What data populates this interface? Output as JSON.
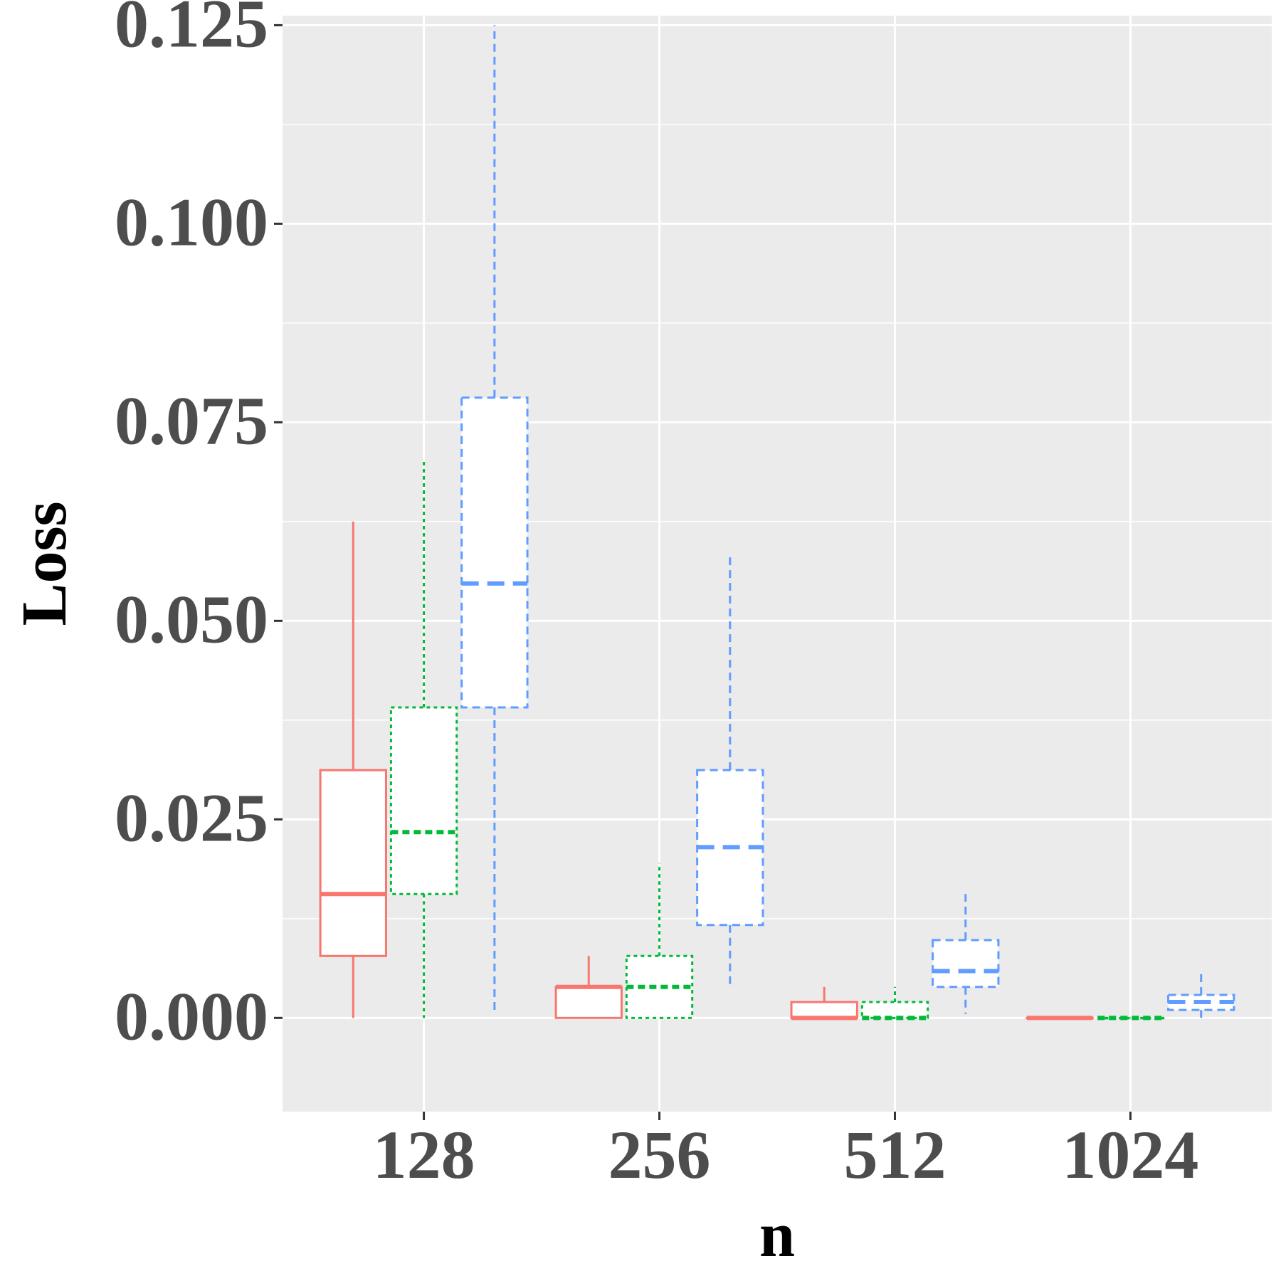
{
  "chart_data": {
    "type": "boxplot",
    "xlabel": "n",
    "ylabel": "Loss",
    "categories": [
      "128",
      "256",
      "512",
      "1024"
    ],
    "ylim": [
      -0.0118,
      0.1262
    ],
    "yticks": [
      0.0,
      0.025,
      0.05,
      0.075,
      0.1,
      0.125
    ],
    "ytick_labels": [
      "0.000",
      "0.025",
      "0.050",
      "0.075",
      "0.100",
      "0.125"
    ],
    "minor_yticks": [
      0.0125,
      0.0375,
      0.0625,
      0.0875,
      0.1125
    ],
    "grid": true,
    "legend": "none",
    "series": [
      {
        "color": "#f8766d",
        "linestyle": "solid",
        "boxes": [
          {
            "min": 0.0,
            "q1": 0.0078,
            "median": 0.0156,
            "q3": 0.0312,
            "max": 0.0625
          },
          {
            "min": 0.0,
            "q1": 0.0,
            "median": 0.0039,
            "q3": 0.0039,
            "max": 0.0078
          },
          {
            "min": 0.0,
            "q1": 0.0,
            "median": 0.0,
            "q3": 0.002,
            "max": 0.0039
          },
          {
            "min": 0.0,
            "q1": 0.0,
            "median": 0.0,
            "q3": 0.0,
            "max": 0.0
          }
        ]
      },
      {
        "color": "#00ba38",
        "linestyle": "dotted",
        "boxes": [
          {
            "min": 0.0,
            "q1": 0.0156,
            "median": 0.0234,
            "q3": 0.0391,
            "max": 0.0703
          },
          {
            "min": 0.0,
            "q1": 0.0,
            "median": 0.0039,
            "q3": 0.0078,
            "max": 0.0195
          },
          {
            "min": 0.0,
            "q1": 0.0,
            "median": 0.0,
            "q3": 0.002,
            "max": 0.0039
          },
          {
            "min": 0.0,
            "q1": 0.0,
            "median": 0.0,
            "q3": 0.0,
            "max": 0.0
          }
        ]
      },
      {
        "color": "#619cff",
        "linestyle": "dashed",
        "boxes": [
          {
            "min": 0.0005,
            "q1": 0.0391,
            "median": 0.0547,
            "q3": 0.0781,
            "max": 0.125
          },
          {
            "min": 0.0039,
            "q1": 0.0117,
            "median": 0.0215,
            "q3": 0.0312,
            "max": 0.0586
          },
          {
            "min": 0.0005,
            "q1": 0.0039,
            "median": 0.0059,
            "q3": 0.0098,
            "max": 0.0156
          },
          {
            "min": 0.0,
            "q1": 0.001,
            "median": 0.002,
            "q3": 0.0029,
            "max": 0.0059
          }
        ]
      }
    ]
  }
}
